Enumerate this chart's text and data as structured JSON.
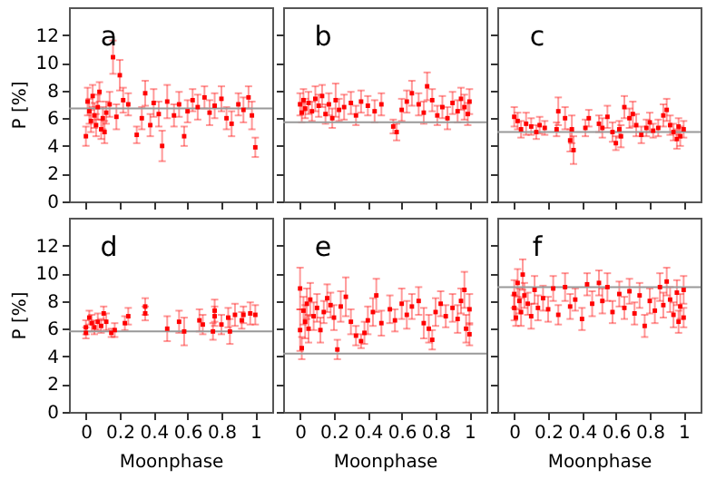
{
  "chart_data": [
    {
      "type": "scatter",
      "annotations": [
        "a"
      ],
      "ylabel": "P [%]",
      "tick_labels": "y",
      "marker": "square",
      "xlim": [
        -0.1,
        1.1
      ],
      "xticks": [
        0,
        0.2,
        0.4,
        0.6,
        0.8,
        1
      ],
      "ylim": [
        0,
        14
      ],
      "yticks": [
        0,
        2,
        4,
        6,
        8,
        10,
        12
      ],
      "ref_lines": [
        {
          "axis": "y",
          "value": 6.7,
          "color": "#999999"
        }
      ],
      "series": [
        {
          "color": "#ff0000",
          "x": [
            0,
            0.01,
            0.02,
            0.03,
            0.04,
            0.05,
            0.06,
            0.07,
            0.08,
            0.09,
            0.1,
            0.11,
            0.12,
            0.14,
            0.16,
            0.18,
            0.2,
            0.22,
            0.25,
            0.3,
            0.33,
            0.35,
            0.38,
            0.4,
            0.43,
            0.45,
            0.48,
            0.52,
            0.55,
            0.58,
            0.6,
            0.63,
            0.66,
            0.7,
            0.73,
            0.76,
            0.8,
            0.83,
            0.86,
            0.9,
            0.93,
            0.96,
            0.98,
            1
          ],
          "values": [
            4.7,
            7.2,
            6.5,
            5.8,
            7.6,
            6.2,
            5.5,
            6.8,
            7.9,
            5.2,
            6,
            5,
            6.4,
            7,
            10.4,
            6.1,
            9.1,
            7.3,
            7,
            4.8,
            6,
            7.8,
            5.5,
            7.1,
            6.3,
            4,
            7.2,
            6.2,
            7,
            4.7,
            6.5,
            7.3,
            6.8,
            7.5,
            6.4,
            6.9,
            7.4,
            6,
            5.6,
            7,
            6.6,
            7.5,
            6.2,
            3.9
          ],
          "errors": [
            0.7,
            1,
            0.9,
            0.8,
            0.8,
            0.9,
            0.8,
            0.9,
            0.7,
            0.7,
            0.8,
            0.8,
            0.8,
            0.9,
            1.2,
            0.9,
            1.1,
            0.9,
            0.8,
            0.6,
            0.8,
            0.9,
            0.8,
            1,
            0.9,
            1.1,
            1.2,
            0.8,
            0.9,
            0.7,
            0.8,
            0.8,
            0.9,
            0.8,
            0.9,
            0.9,
            0.9,
            0.8,
            0.9,
            0.8,
            0.9,
            0.8,
            1,
            0.7
          ]
        }
      ]
    },
    {
      "type": "scatter",
      "annotations": [
        "b"
      ],
      "tick_labels": false,
      "marker": "square",
      "xlim": [
        -0.1,
        1.1
      ],
      "xticks": [
        0,
        0.2,
        0.4,
        0.6,
        0.8,
        1
      ],
      "ylim": [
        0,
        14
      ],
      "yticks": [
        0,
        2,
        4,
        6,
        8,
        10,
        12
      ],
      "ref_lines": [
        {
          "axis": "y",
          "value": 5.7,
          "color": "#999999"
        }
      ],
      "series": [
        {
          "color": "#ff0000",
          "x": [
            0,
            0.01,
            0.02,
            0.03,
            0.05,
            0.07,
            0.09,
            0.11,
            0.13,
            0.15,
            0.17,
            0.19,
            0.21,
            0.23,
            0.26,
            0.3,
            0.33,
            0.36,
            0.4,
            0.44,
            0.48,
            0.55,
            0.57,
            0.6,
            0.63,
            0.66,
            0.7,
            0.73,
            0.75,
            0.78,
            0.81,
            0.84,
            0.87,
            0.9,
            0.93,
            0.95,
            0.97,
            0.99,
            1
          ],
          "values": [
            7,
            6.4,
            7.3,
            6.7,
            7.1,
            6.5,
            7.4,
            6.9,
            7.6,
            6.3,
            7,
            6,
            7.3,
            6.6,
            6.8,
            7.1,
            6.2,
            7.2,
            6.9,
            6.5,
            7,
            5.4,
            5,
            6.6,
            7.2,
            7.8,
            7,
            6.4,
            8.3,
            7.3,
            6.2,
            6.8,
            6,
            7.1,
            6.5,
            7.4,
            6.8,
            6.3,
            7.2
          ],
          "errors": [
            0.8,
            0.7,
            0.8,
            0.7,
            0.8,
            0.7,
            0.9,
            0.8,
            0.8,
            0.7,
            0.8,
            0.7,
            1.2,
            0.8,
            0.9,
            0.8,
            0.7,
            0.8,
            0.7,
            0.8,
            0.8,
            0.5,
            0.6,
            0.8,
            0.8,
            0.9,
            0.8,
            0.8,
            1,
            0.8,
            0.7,
            0.8,
            0.8,
            0.8,
            0.8,
            0.8,
            0.9,
            0.8,
            0.9
          ]
        }
      ]
    },
    {
      "type": "scatter",
      "annotations": [
        "c"
      ],
      "tick_labels": false,
      "marker": "square",
      "xlim": [
        -0.1,
        1.1
      ],
      "xticks": [
        0,
        0.2,
        0.4,
        0.6,
        0.8,
        1
      ],
      "ylim": [
        0,
        14
      ],
      "yticks": [
        0,
        2,
        4,
        6,
        8,
        10,
        12
      ],
      "ref_lines": [
        {
          "axis": "y",
          "value": 5.0,
          "color": "#999999"
        }
      ],
      "series": [
        {
          "color": "#ff0000",
          "x": [
            0,
            0.02,
            0.04,
            0.07,
            0.1,
            0.13,
            0.15,
            0.18,
            0.25,
            0.26,
            0.3,
            0.33,
            0.34,
            0.35,
            0.42,
            0.44,
            0.5,
            0.52,
            0.55,
            0.58,
            0.6,
            0.62,
            0.63,
            0.65,
            0.68,
            0.7,
            0.72,
            0.75,
            0.78,
            0.8,
            0.82,
            0.85,
            0.88,
            0.9,
            0.92,
            0.94,
            0.96,
            0.97,
            0.98,
            1
          ],
          "values": [
            6.1,
            5.8,
            5.2,
            5.6,
            5.4,
            5,
            5.5,
            5.3,
            5.2,
            6.5,
            6,
            4.4,
            5.2,
            3.7,
            5.3,
            6,
            5.6,
            5.3,
            6.1,
            5,
            4.2,
            5.2,
            4.7,
            6.8,
            6,
            6.3,
            5.5,
            4.8,
            5.3,
            5.7,
            5.1,
            5.3,
            6.2,
            6.6,
            5.5,
            5,
            4.5,
            5.4,
            4.7,
            5.2
          ],
          "errors": [
            0.7,
            0.6,
            0.6,
            0.8,
            0.6,
            0.5,
            0.6,
            0.5,
            0.5,
            1,
            0.8,
            0.8,
            1,
            1,
            0.6,
            0.6,
            0.6,
            0.7,
            0.8,
            0.7,
            0.5,
            0.6,
            0.8,
            0.8,
            0.7,
            0.9,
            0.8,
            0.6,
            0.6,
            0.7,
            0.5,
            0.6,
            0.8,
            0.8,
            0.7,
            0.6,
            0.7,
            0.6,
            0.7,
            0.6
          ]
        }
      ]
    },
    {
      "type": "scatter",
      "annotations": [
        "d"
      ],
      "xlabel": "Moonphase",
      "ylabel": "P [%]",
      "marker": "square",
      "xlim": [
        -0.1,
        1.1
      ],
      "xticks": [
        0,
        0.2,
        0.4,
        0.6,
        0.8,
        1
      ],
      "ylim": [
        0,
        14
      ],
      "yticks": [
        0,
        2,
        4,
        6,
        8,
        10,
        12
      ],
      "ref_lines": [
        {
          "axis": "y",
          "value": 5.8,
          "color": "#999999"
        }
      ],
      "series": [
        {
          "color": "#ff0000",
          "x": [
            0,
            0,
            0.02,
            0.035,
            0.05,
            0.07,
            0.09,
            0.105,
            0.12,
            0.15,
            0.17,
            0.23,
            0.25,
            0.35,
            0.35,
            0.48,
            0.55,
            0.58,
            0.67,
            0.69,
            0.75,
            0.76,
            0.76,
            0.8,
            0.84,
            0.85,
            0.88,
            0.92,
            0.93,
            0.97,
            1
          ],
          "values": [
            5.7,
            6.1,
            6.8,
            6.4,
            6.1,
            6.5,
            6.2,
            7.1,
            6.5,
            5.7,
            5.9,
            6.4,
            6.9,
            7.6,
            7.1,
            6,
            6.5,
            5.8,
            6.6,
            6.3,
            5.8,
            7.3,
            6.9,
            6.3,
            6.8,
            5.8,
            7,
            6.6,
            7,
            7.1,
            7
          ],
          "errors": [
            0.4,
            0.5,
            0.5,
            0.6,
            0.5,
            0.6,
            0.5,
            0.5,
            0.6,
            0.3,
            0.5,
            0.5,
            0.6,
            0.6,
            0.5,
            0.9,
            0.8,
            1,
            0.8,
            0.7,
            0.6,
            0.8,
            0.7,
            0.7,
            0.7,
            0.9,
            0.8,
            0.6,
            0.6,
            0.8,
            0.7
          ]
        }
      ]
    },
    {
      "type": "scatter",
      "annotations": [
        "e"
      ],
      "xlabel": "Moonphase",
      "tick_labels": "x",
      "marker": "square",
      "xlim": [
        -0.1,
        1.1
      ],
      "xticks": [
        0,
        0.2,
        0.4,
        0.6,
        0.8,
        1
      ],
      "ylim": [
        0,
        14
      ],
      "yticks": [
        0,
        2,
        4,
        6,
        8,
        10,
        12
      ],
      "ref_lines": [
        {
          "axis": "y",
          "value": 4.2,
          "color": "#999999"
        }
      ],
      "series": [
        {
          "color": "#ff0000",
          "x": [
            0,
            0,
            0.01,
            0.02,
            0.03,
            0.04,
            0.05,
            0.06,
            0.08,
            0.1,
            0.12,
            0.14,
            0.16,
            0.18,
            0.2,
            0.22,
            0.24,
            0.27,
            0.3,
            0.33,
            0.36,
            0.38,
            0.4,
            0.43,
            0.45,
            0.48,
            0.53,
            0.56,
            0.6,
            0.63,
            0.66,
            0.7,
            0.73,
            0.76,
            0.78,
            0.8,
            0.83,
            0.86,
            0.9,
            0.93,
            0.95,
            0.97,
            0.98,
            1,
            1
          ],
          "values": [
            5.9,
            8.9,
            4.6,
            7.3,
            6.5,
            7.8,
            6,
            8.1,
            6.9,
            7.5,
            5.9,
            7.2,
            8.2,
            7.7,
            6.8,
            4.5,
            7.6,
            8.3,
            6.5,
            5.5,
            5.1,
            5.7,
            6.6,
            7.2,
            8.4,
            6.4,
            7.4,
            6.6,
            7.8,
            7,
            7.6,
            8,
            6.4,
            6,
            5.2,
            7.2,
            7.8,
            6.9,
            7.5,
            6.7,
            8,
            8.8,
            6,
            7.4,
            5.6
          ],
          "errors": [
            1.5,
            1.5,
            0.8,
            1,
            1.2,
            1.1,
            1,
            1.2,
            1,
            1,
            0.9,
            0.8,
            1,
            0.9,
            0.9,
            0.7,
            1.1,
            1.4,
            0.9,
            0.7,
            0.5,
            0.8,
            1,
            1,
            1.2,
            0.9,
            1,
            0.8,
            1.1,
            1,
            0.9,
            1,
            1.1,
            1,
            0.7,
            1,
            0.9,
            0.8,
            1,
            1,
            0.9,
            1.3,
            1,
            1.1,
            0.8
          ]
        }
      ]
    },
    {
      "type": "scatter",
      "annotations": [
        "f"
      ],
      "xlabel": "Moonphase",
      "tick_labels": "x",
      "marker": "square",
      "xlim": [
        -0.1,
        1.1
      ],
      "xticks": [
        0,
        0.2,
        0.4,
        0.6,
        0.8,
        1
      ],
      "ylim": [
        0,
        14
      ],
      "yticks": [
        0,
        2,
        4,
        6,
        8,
        10,
        12
      ],
      "ref_lines": [
        {
          "axis": "y",
          "value": 9.0,
          "color": "#999999"
        }
      ],
      "series": [
        {
          "color": "#ff0000",
          "x": [
            0,
            0,
            0.01,
            0.02,
            0.03,
            0.04,
            0.05,
            0.06,
            0.08,
            0.1,
            0.12,
            0.14,
            0.17,
            0.2,
            0.23,
            0.26,
            0.3,
            0.33,
            0.36,
            0.4,
            0.43,
            0.46,
            0.5,
            0.52,
            0.55,
            0.58,
            0.62,
            0.65,
            0.68,
            0.71,
            0.74,
            0.77,
            0.8,
            0.83,
            0.86,
            0.88,
            0.9,
            0.92,
            0.94,
            0.96,
            0.97,
            0.98,
            1,
            1
          ],
          "values": [
            7.5,
            8.5,
            6.8,
            9.3,
            8,
            7.2,
            9.9,
            8.4,
            7.8,
            6.9,
            8.8,
            7.5,
            8.2,
            7.4,
            8.9,
            7,
            9,
            7.6,
            8.1,
            6.7,
            9.2,
            7.8,
            9.3,
            8,
            9,
            7.2,
            8.5,
            7.5,
            8.7,
            7.1,
            8.4,
            6.2,
            8,
            7.3,
            9,
            7.7,
            9.4,
            8.1,
            7,
            8.6,
            6.5,
            7.6,
            8.8,
            6.8
          ],
          "errors": [
            0.9,
            1,
            0.6,
            1,
            0.9,
            1,
            1.1,
            0.9,
            0.8,
            0.9,
            1,
            0.9,
            0.9,
            0.9,
            0.9,
            0.7,
            1,
            0.9,
            0.8,
            0.8,
            0.8,
            0.9,
            0.9,
            0.9,
            1,
            0.8,
            0.9,
            0.8,
            0.9,
            0.8,
            0.9,
            0.8,
            0.9,
            0.9,
            1,
            0.9,
            1,
            0.9,
            0.9,
            0.9,
            0.8,
            0.9,
            1,
            0.7
          ]
        }
      ]
    }
  ]
}
